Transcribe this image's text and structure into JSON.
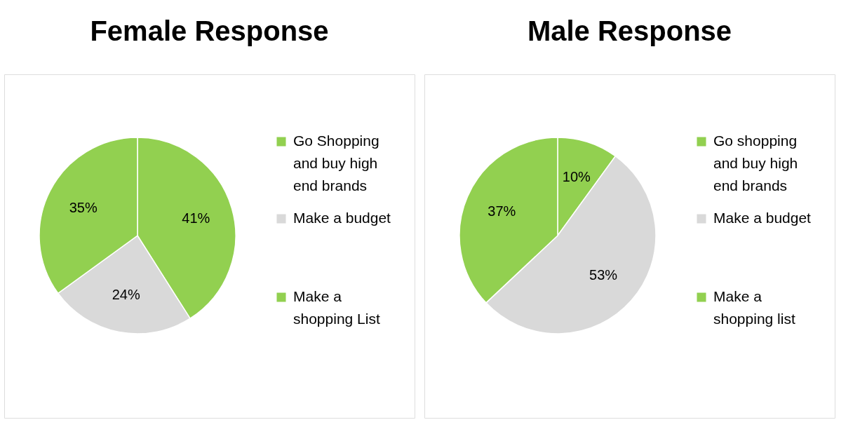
{
  "chart_data": [
    {
      "type": "pie",
      "title": "Female Response",
      "categories": [
        "Go Shopping and buy high end brands",
        "Make a budget",
        "Make a shopping List"
      ],
      "values": [
        41,
        24,
        35
      ],
      "value_labels": [
        "41%",
        "24%",
        "35%"
      ],
      "colors": [
        "#92d050",
        "#d9d9d9",
        "#92d050"
      ],
      "legend": "right"
    },
    {
      "type": "pie",
      "title": "Male Response",
      "categories": [
        "Go shopping and buy high end brands",
        "Make a budget",
        "Make a shopping list"
      ],
      "values": [
        10,
        53,
        37
      ],
      "value_labels": [
        "10%",
        "53%",
        "37%"
      ],
      "colors": [
        "#92d050",
        "#d9d9d9",
        "#92d050"
      ],
      "legend": "right"
    }
  ]
}
